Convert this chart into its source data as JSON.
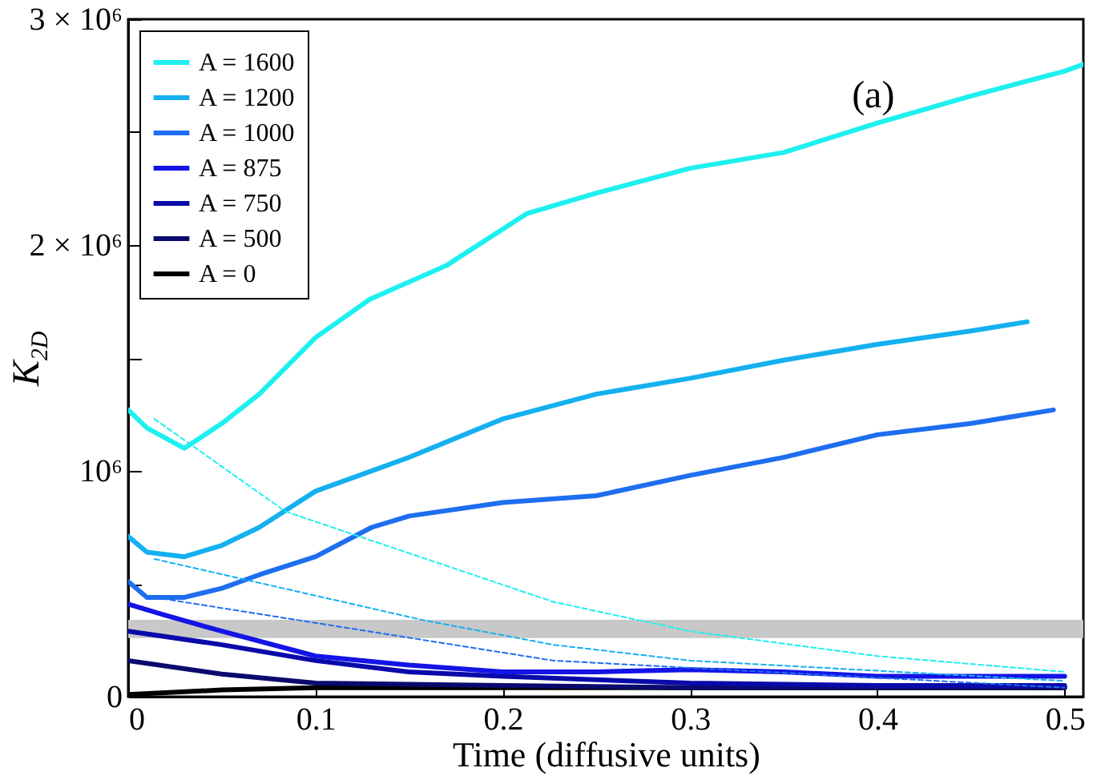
{
  "chart_data": {
    "type": "line",
    "xlabel": "Time (diffusive units)",
    "ylabel": "K$_{2D}$",
    "annotations": [
      "(a)"
    ],
    "xlim": [
      0,
      0.51
    ],
    "xticks": [
      0,
      0.1,
      0.2,
      0.3,
      0.4,
      0.5
    ],
    "ylim": [
      0,
      3000000
    ],
    "yticks": [
      0,
      {
        "value": 500000,
        "label": null
      },
      {
        "value": 1000000,
        "label": "10⁶"
      },
      {
        "value": 1500000,
        "label": null
      },
      {
        "value": 2000000,
        "label": "2 × 10⁶"
      },
      {
        "value": 2500000,
        "label": null
      },
      {
        "value": 3000000,
        "label": "3 × 10⁶"
      }
    ],
    "bands": [
      {
        "axis": "y",
        "from": 260000,
        "to": 340000,
        "color": "#c8c8c8"
      }
    ],
    "legend": "top left",
    "series": [
      {
        "name": "A = 1600",
        "color": "#1ef0f0",
        "x": [
          0,
          0.01,
          0.03,
          0.05,
          0.07,
          0.1,
          0.129,
          0.17,
          0.213,
          0.25,
          0.3,
          0.35,
          0.4,
          0.45,
          0.5,
          0.51
        ],
        "values": [
          1270000,
          1190000,
          1100000,
          1210000,
          1340000,
          1590000,
          1760000,
          1910000,
          2140000,
          2230000,
          2340000,
          2410000,
          2540000,
          2660000,
          2770000,
          2800000
        ]
      },
      {
        "name": "A = 1200",
        "color": "#14b0f0",
        "x": [
          0,
          0.01,
          0.03,
          0.05,
          0.07,
          0.1,
          0.15,
          0.2,
          0.25,
          0.3,
          0.35,
          0.4,
          0.45,
          0.48
        ],
        "values": [
          710000,
          640000,
          620000,
          670000,
          750000,
          910000,
          1060000,
          1230000,
          1340000,
          1410000,
          1490000,
          1560000,
          1620000,
          1660000
        ]
      },
      {
        "name": "A = 1000",
        "color": "#1e6ef0",
        "x": [
          0,
          0.01,
          0.03,
          0.05,
          0.07,
          0.1,
          0.13,
          0.15,
          0.2,
          0.25,
          0.3,
          0.35,
          0.4,
          0.45,
          0.494
        ],
        "values": [
          510000,
          440000,
          440000,
          480000,
          540000,
          620000,
          750000,
          800000,
          860000,
          890000,
          980000,
          1060000,
          1160000,
          1210000,
          1270000
        ]
      },
      {
        "name": "A = 875",
        "color": "#1414e6",
        "x": [
          0,
          0.02,
          0.05,
          0.1,
          0.15,
          0.2,
          0.25,
          0.3,
          0.35,
          0.4,
          0.45,
          0.5
        ],
        "values": [
          410000,
          360000,
          290000,
          180000,
          140000,
          110000,
          110000,
          120000,
          110000,
          90000,
          90000,
          90000
        ]
      },
      {
        "name": "A = 750",
        "color": "#0a0aaa",
        "x": [
          0,
          0.05,
          0.1,
          0.15,
          0.2,
          0.3,
          0.4,
          0.5
        ],
        "values": [
          290000,
          230000,
          160000,
          110000,
          90000,
          60000,
          50000,
          50000
        ]
      },
      {
        "name": "A = 500",
        "color": "#0a0a6e",
        "x": [
          0,
          0.05,
          0.1,
          0.2,
          0.3,
          0.5
        ],
        "values": [
          160000,
          100000,
          60000,
          50000,
          40000,
          40000
        ]
      },
      {
        "name": "A = 0",
        "color": "#000000",
        "x": [
          0,
          0.05,
          0.1,
          0.2,
          0.3,
          0.5
        ],
        "values": [
          10000,
          30000,
          40000,
          40000,
          40000,
          40000
        ]
      },
      {
        "type": "line",
        "line_style": "dashed",
        "color": "#1ef0f0",
        "x": [
          0.014,
          0.084,
          0.227,
          0.3,
          0.4,
          0.5
        ],
        "values": [
          1230000,
          820000,
          420000,
          290000,
          180000,
          110000
        ]
      },
      {
        "type": "line",
        "line_style": "dashed",
        "color": "#14b0f0",
        "x": [
          0.014,
          0.157,
          0.227,
          0.3,
          0.5
        ],
        "values": [
          610000,
          340000,
          230000,
          160000,
          70000
        ]
      },
      {
        "type": "line",
        "line_style": "dashed",
        "color": "#1e6ef0",
        "x": [
          0.014,
          0.227,
          0.5
        ],
        "values": [
          440000,
          160000,
          40000
        ]
      }
    ]
  }
}
